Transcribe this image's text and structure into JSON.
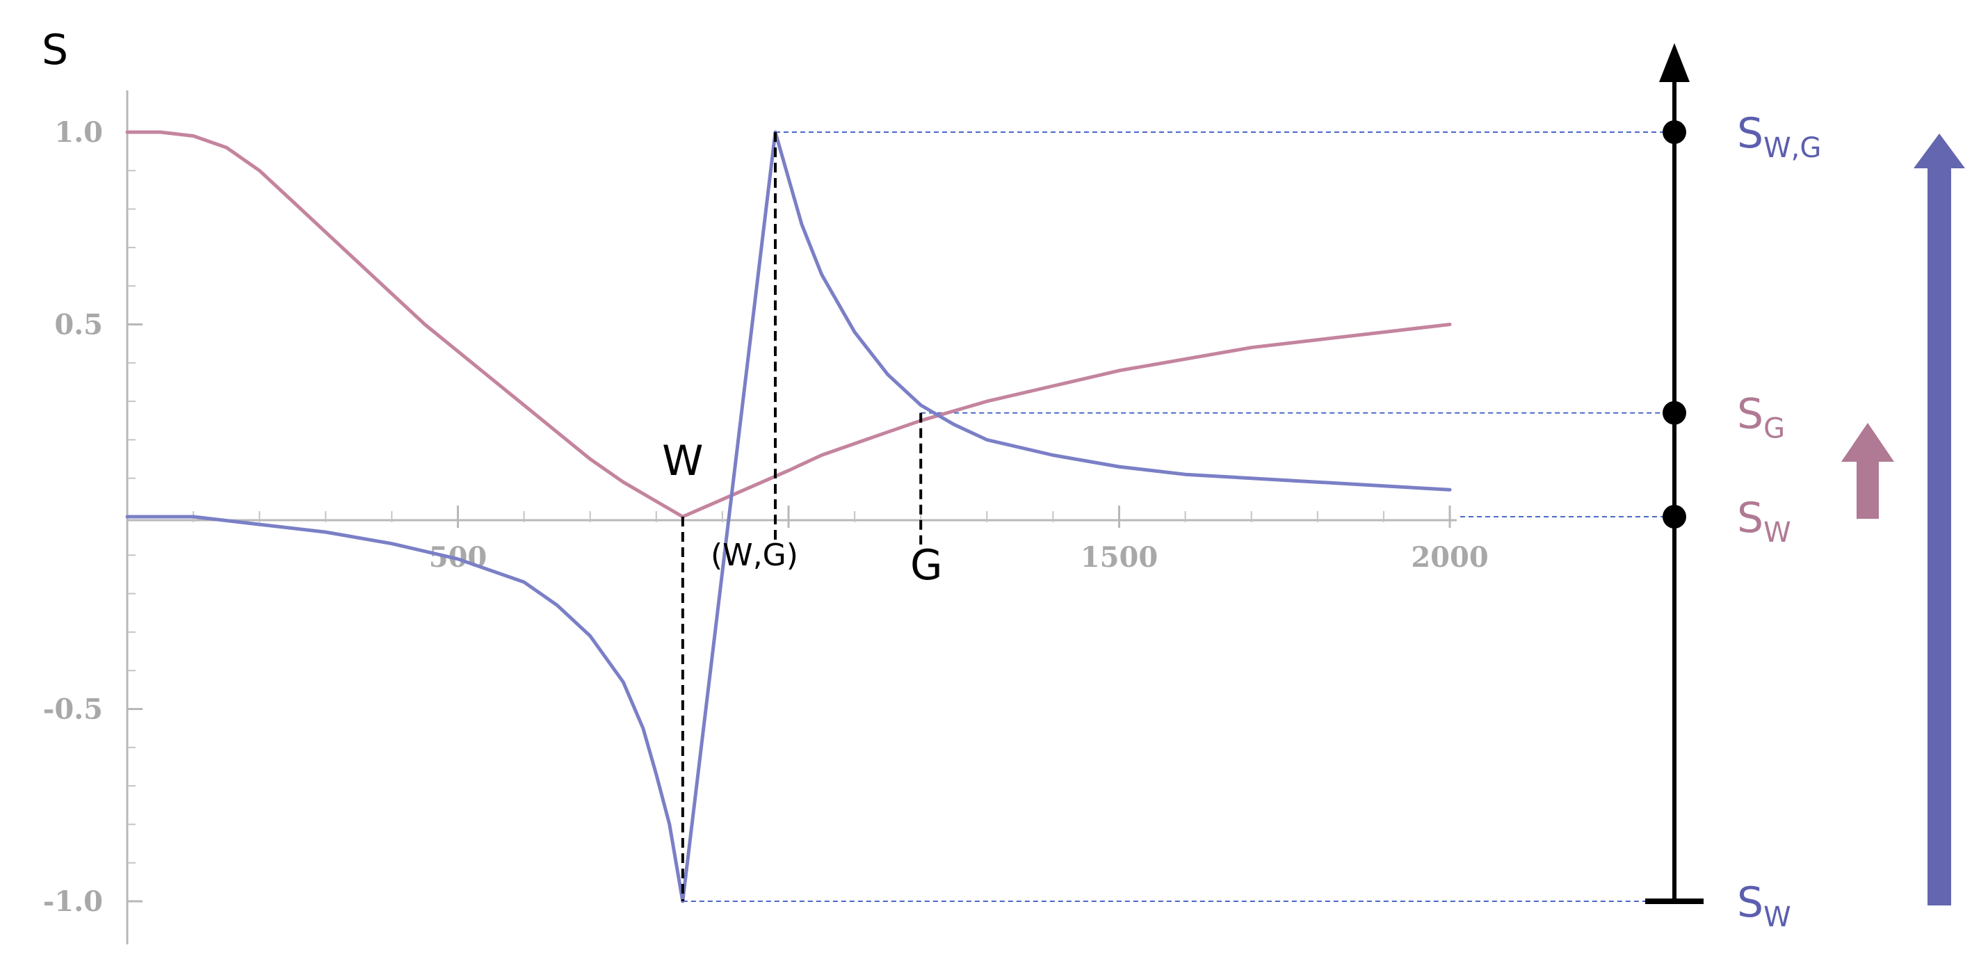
{
  "chart_data": {
    "type": "line",
    "ylabel": "S",
    "xlim": [
      0,
      2000
    ],
    "ylim": [
      -1.0,
      1.0
    ],
    "x_ticks": [
      500,
      1000,
      1500,
      2000
    ],
    "x_tick_labels": [
      "500",
      "",
      "1500",
      "2000"
    ],
    "y_ticks": [
      1.0,
      0.5,
      -0.5,
      -1.0
    ],
    "y_tick_labels": [
      "1.0",
      "0.5",
      "-0.5",
      "-1.0"
    ],
    "grid": false,
    "series": [
      {
        "color": "#c4849e",
        "points": [
          [
            0,
            1.0
          ],
          [
            50,
            1.0
          ],
          [
            100,
            0.99
          ],
          [
            150,
            0.96
          ],
          [
            200,
            0.9
          ],
          [
            250,
            0.82
          ],
          [
            300,
            0.74
          ],
          [
            350,
            0.66
          ],
          [
            400,
            0.58
          ],
          [
            450,
            0.5
          ],
          [
            500,
            0.43
          ],
          [
            550,
            0.36
          ],
          [
            600,
            0.29
          ],
          [
            650,
            0.22
          ],
          [
            700,
            0.15
          ],
          [
            750,
            0.09
          ],
          [
            800,
            0.04
          ],
          [
            840,
            0.0
          ],
          [
            880,
            0.03
          ],
          [
            920,
            0.06
          ],
          [
            960,
            0.09
          ],
          [
            1000,
            0.12
          ],
          [
            1050,
            0.16
          ],
          [
            1100,
            0.19
          ],
          [
            1150,
            0.22
          ],
          [
            1200,
            0.25
          ],
          [
            1300,
            0.3
          ],
          [
            1400,
            0.34
          ],
          [
            1500,
            0.38
          ],
          [
            1600,
            0.41
          ],
          [
            1700,
            0.44
          ],
          [
            1800,
            0.46
          ],
          [
            1900,
            0.48
          ],
          [
            2000,
            0.5
          ]
        ]
      },
      {
        "color": "#7a7fc6",
        "points": [
          [
            0,
            0.0
          ],
          [
            100,
            0.0
          ],
          [
            200,
            -0.02
          ],
          [
            300,
            -0.04
          ],
          [
            400,
            -0.07
          ],
          [
            500,
            -0.11
          ],
          [
            600,
            -0.17
          ],
          [
            650,
            -0.23
          ],
          [
            700,
            -0.31
          ],
          [
            750,
            -0.43
          ],
          [
            780,
            -0.55
          ],
          [
            800,
            -0.67
          ],
          [
            820,
            -0.8
          ],
          [
            840,
            -1.0
          ],
          [
            980,
            1.0
          ],
          [
            1000,
            0.88
          ],
          [
            1020,
            0.76
          ],
          [
            1050,
            0.63
          ],
          [
            1100,
            0.48
          ],
          [
            1150,
            0.37
          ],
          [
            1200,
            0.29
          ],
          [
            1250,
            0.24
          ],
          [
            1300,
            0.2
          ],
          [
            1400,
            0.16
          ],
          [
            1500,
            0.13
          ],
          [
            1600,
            0.11
          ],
          [
            1700,
            0.1
          ],
          [
            1800,
            0.09
          ],
          [
            1900,
            0.08
          ],
          [
            2000,
            0.07
          ]
        ]
      }
    ],
    "annotations": {
      "w_point": {
        "label": "W",
        "x": 840
      },
      "wg_point": {
        "label": "(W,G)",
        "x": 980
      },
      "g_point": {
        "label": "G",
        "x": 1200,
        "y": 0.27
      }
    }
  },
  "scale": {
    "markers": [
      {
        "main": "S",
        "sub": "W,G",
        "value": 1.0,
        "color": "#5c5fae"
      },
      {
        "main": "S",
        "sub": "G",
        "value": 0.27,
        "color": "#b07a94"
      },
      {
        "main": "S",
        "sub": "W",
        "value": 0.0,
        "color": "#b07a94"
      },
      {
        "main": "S",
        "sub": "W",
        "value": -1.0,
        "color": "#5c5fae"
      }
    ],
    "small_arrow_color": "#b07a94",
    "big_arrow_color": "#6466b0",
    "guide_color": "#4a68c8"
  }
}
